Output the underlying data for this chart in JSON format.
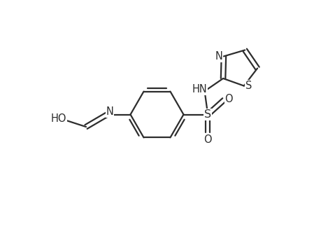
{
  "background_color": "#ffffff",
  "line_color": "#2d2d2d",
  "line_width": 1.6,
  "font_size": 10.5,
  "figsize": [
    4.49,
    3.27
  ],
  "dpi": 100,
  "xlim": [
    0,
    9
  ],
  "ylim": [
    0,
    7
  ]
}
